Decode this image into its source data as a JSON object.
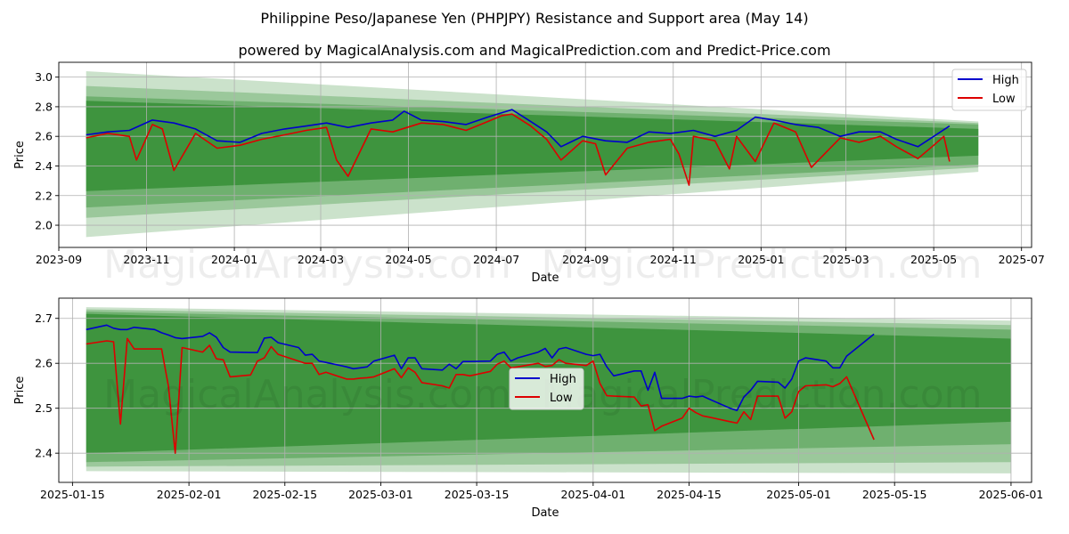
{
  "title": "Philippine Peso/Japanese Yen (PHPJPY) Resistance and Support area (May 14)",
  "subtitle": "powered by MagicalAnalysis.com and MagicalPrediction.com and Predict-Price.com",
  "watermarks": [
    "MagicalAnalysis.com",
    "MagicalPrediction.com"
  ],
  "colors": {
    "high": "#0000cc",
    "low": "#dd0000",
    "band": "#2e8b2e",
    "grid": "#b0b0b0"
  },
  "chart_data": [
    {
      "type": "line",
      "xlabel": "Date",
      "ylabel": "Price",
      "xlim": [
        "2023-09-01",
        "2025-07-08"
      ],
      "ylim": [
        1.85,
        3.1
      ],
      "x_ticks": [
        "2023-09",
        "2023-11",
        "2024-01",
        "2024-03",
        "2024-05",
        "2024-07",
        "2024-09",
        "2024-11",
        "2025-01",
        "2025-03",
        "2025-05",
        "2025-07"
      ],
      "y_ticks": [
        "2.0",
        "2.2",
        "2.4",
        "2.6",
        "2.8",
        "3.0"
      ],
      "legend": {
        "placement": "top-right",
        "entries": [
          "High",
          "Low"
        ]
      },
      "grid": true,
      "bands": {
        "x": [
          "2023-09-20",
          "2025-06-01"
        ],
        "outer": {
          "start": [
            1.92,
            3.04
          ],
          "end": [
            2.36,
            2.7
          ]
        },
        "middle": {
          "start": [
            2.05,
            2.94
          ],
          "end": [
            2.39,
            2.69
          ]
        },
        "inner": {
          "start": [
            2.12,
            2.87
          ],
          "end": [
            2.41,
            2.68
          ]
        },
        "core": {
          "start": [
            2.23,
            2.84
          ],
          "end": [
            2.47,
            2.65
          ]
        }
      },
      "series": [
        {
          "name": "High",
          "x": [
            "2023-09-20",
            "2023-10-05",
            "2023-10-20",
            "2023-11-05",
            "2023-11-20",
            "2023-12-05",
            "2023-12-20",
            "2024-01-05",
            "2024-01-20",
            "2024-02-05",
            "2024-02-20",
            "2024-03-05",
            "2024-03-20",
            "2024-04-05",
            "2024-04-20",
            "2024-04-28",
            "2024-05-10",
            "2024-05-25",
            "2024-06-10",
            "2024-06-25",
            "2024-07-05",
            "2024-07-12",
            "2024-07-25",
            "2024-08-05",
            "2024-08-15",
            "2024-08-30",
            "2024-09-15",
            "2024-09-30",
            "2024-10-15",
            "2024-10-30",
            "2024-11-15",
            "2024-11-30",
            "2024-12-15",
            "2024-12-28",
            "2025-01-10",
            "2025-01-25",
            "2025-02-10",
            "2025-02-25",
            "2025-03-10",
            "2025-03-25",
            "2025-04-05",
            "2025-04-20",
            "2025-05-01",
            "2025-05-12"
          ],
          "values": [
            2.61,
            2.63,
            2.64,
            2.71,
            2.69,
            2.65,
            2.57,
            2.56,
            2.62,
            2.65,
            2.67,
            2.69,
            2.66,
            2.69,
            2.71,
            2.77,
            2.71,
            2.7,
            2.68,
            2.73,
            2.76,
            2.78,
            2.7,
            2.63,
            2.53,
            2.6,
            2.57,
            2.56,
            2.63,
            2.62,
            2.64,
            2.6,
            2.64,
            2.73,
            2.71,
            2.68,
            2.66,
            2.6,
            2.63,
            2.63,
            2.58,
            2.53,
            2.6,
            2.67
          ]
        },
        {
          "name": "Low",
          "x": [
            "2023-09-20",
            "2023-10-05",
            "2023-10-20",
            "2023-10-25",
            "2023-11-05",
            "2023-11-12",
            "2023-11-20",
            "2023-12-05",
            "2023-12-20",
            "2024-01-05",
            "2024-01-20",
            "2024-02-05",
            "2024-02-20",
            "2024-03-05",
            "2024-03-12",
            "2024-03-20",
            "2024-04-05",
            "2024-04-20",
            "2024-05-10",
            "2024-05-25",
            "2024-06-10",
            "2024-06-25",
            "2024-07-05",
            "2024-07-12",
            "2024-07-25",
            "2024-08-05",
            "2024-08-15",
            "2024-08-30",
            "2024-09-08",
            "2024-09-15",
            "2024-09-30",
            "2024-10-15",
            "2024-10-30",
            "2024-11-05",
            "2024-11-12",
            "2024-11-15",
            "2024-11-30",
            "2024-12-10",
            "2024-12-15",
            "2024-12-28",
            "2025-01-10",
            "2025-01-25",
            "2025-02-05",
            "2025-02-25",
            "2025-03-10",
            "2025-03-25",
            "2025-04-05",
            "2025-04-20",
            "2025-05-01",
            "2025-05-08",
            "2025-05-12"
          ],
          "values": [
            2.59,
            2.62,
            2.6,
            2.44,
            2.68,
            2.65,
            2.37,
            2.62,
            2.52,
            2.54,
            2.58,
            2.61,
            2.64,
            2.66,
            2.44,
            2.33,
            2.65,
            2.63,
            2.69,
            2.68,
            2.64,
            2.7,
            2.74,
            2.75,
            2.67,
            2.58,
            2.44,
            2.57,
            2.55,
            2.34,
            2.52,
            2.56,
            2.58,
            2.48,
            2.27,
            2.6,
            2.57,
            2.38,
            2.6,
            2.43,
            2.69,
            2.63,
            2.39,
            2.59,
            2.56,
            2.6,
            2.53,
            2.45,
            2.54,
            2.6,
            2.43
          ]
        }
      ]
    },
    {
      "type": "line",
      "xlabel": "Date",
      "ylabel": "Price",
      "xlim": [
        "2025-01-13",
        "2025-06-04"
      ],
      "ylim": [
        2.335,
        2.745
      ],
      "x_ticks": [
        "2025-01-15",
        "2025-02-01",
        "2025-02-15",
        "2025-03-01",
        "2025-03-15",
        "2025-04-01",
        "2025-04-15",
        "2025-05-01",
        "2025-05-15",
        "2025-06-01"
      ],
      "y_ticks": [
        "2.4",
        "2.5",
        "2.6",
        "2.7"
      ],
      "legend": {
        "placement": "center",
        "entries": [
          "High",
          "Low"
        ]
      },
      "grid": true,
      "bands": {
        "x": [
          "2025-01-17",
          "2025-06-01"
        ],
        "outer": {
          "start": [
            2.36,
            2.725
          ],
          "end": [
            2.355,
            2.695
          ]
        },
        "middle": {
          "start": [
            2.37,
            2.72
          ],
          "end": [
            2.38,
            2.685
          ]
        },
        "inner": {
          "start": [
            2.38,
            2.715
          ],
          "end": [
            2.42,
            2.675
          ]
        },
        "core": {
          "start": [
            2.4,
            2.71
          ],
          "end": [
            2.47,
            2.655
          ]
        }
      },
      "series": [
        {
          "name": "High",
          "x": [
            "2025-01-17",
            "2025-01-20",
            "2025-01-21",
            "2025-01-22",
            "2025-01-23",
            "2025-01-24",
            "2025-01-27",
            "2025-01-28",
            "2025-01-29",
            "2025-01-30",
            "2025-01-31",
            "2025-02-03",
            "2025-02-04",
            "2025-02-05",
            "2025-02-06",
            "2025-02-07",
            "2025-02-10",
            "2025-02-11",
            "2025-02-12",
            "2025-02-13",
            "2025-02-14",
            "2025-02-17",
            "2025-02-18",
            "2025-02-19",
            "2025-02-20",
            "2025-02-21",
            "2025-02-24",
            "2025-02-25",
            "2025-02-26",
            "2025-02-27",
            "2025-02-28",
            "2025-03-03",
            "2025-03-04",
            "2025-03-05",
            "2025-03-06",
            "2025-03-07",
            "2025-03-10",
            "2025-03-11",
            "2025-03-12",
            "2025-03-13",
            "2025-03-14",
            "2025-03-17",
            "2025-03-18",
            "2025-03-19",
            "2025-03-20",
            "2025-03-21",
            "2025-03-24",
            "2025-03-25",
            "2025-03-26",
            "2025-03-27",
            "2025-03-28",
            "2025-03-31",
            "2025-04-01",
            "2025-04-02",
            "2025-04-03",
            "2025-04-04",
            "2025-04-07",
            "2025-04-08",
            "2025-04-09",
            "2025-04-10",
            "2025-04-11",
            "2025-04-14",
            "2025-04-15",
            "2025-04-16",
            "2025-04-17",
            "2025-04-18",
            "2025-04-21",
            "2025-04-22",
            "2025-04-23",
            "2025-04-24",
            "2025-04-25",
            "2025-04-28",
            "2025-04-29",
            "2025-04-30",
            "2025-05-01",
            "2025-05-02",
            "2025-05-05",
            "2025-05-06",
            "2025-05-07",
            "2025-05-08",
            "2025-05-12"
          ],
          "values": [
            2.675,
            2.685,
            2.678,
            2.675,
            2.675,
            2.68,
            2.675,
            2.668,
            2.663,
            2.657,
            2.655,
            2.66,
            2.668,
            2.658,
            2.635,
            2.625,
            2.624,
            2.624,
            2.656,
            2.658,
            2.646,
            2.635,
            2.618,
            2.62,
            2.605,
            2.602,
            2.592,
            2.588,
            2.59,
            2.592,
            2.605,
            2.618,
            2.588,
            2.612,
            2.612,
            2.588,
            2.585,
            2.598,
            2.588,
            2.604,
            2.604,
            2.605,
            2.62,
            2.625,
            2.605,
            2.612,
            2.625,
            2.633,
            2.612,
            2.632,
            2.635,
            2.62,
            2.617,
            2.62,
            2.592,
            2.572,
            2.583,
            2.583,
            2.54,
            2.58,
            2.522,
            2.522,
            2.527,
            2.525,
            2.527,
            2.52,
            2.5,
            2.495,
            2.525,
            2.54,
            2.56,
            2.558,
            2.545,
            2.565,
            2.605,
            2.612,
            2.605,
            2.59,
            2.59,
            2.616,
            2.665
          ]
        },
        {
          "name": "Low",
          "x": [
            "2025-01-17",
            "2025-01-20",
            "2025-01-21",
            "2025-01-22",
            "2025-01-23",
            "2025-01-24",
            "2025-01-27",
            "2025-01-28",
            "2025-01-29",
            "2025-01-30",
            "2025-01-31",
            "2025-02-03",
            "2025-02-04",
            "2025-02-05",
            "2025-02-06",
            "2025-02-07",
            "2025-02-10",
            "2025-02-11",
            "2025-02-12",
            "2025-02-13",
            "2025-02-14",
            "2025-02-17",
            "2025-02-18",
            "2025-02-19",
            "2025-02-20",
            "2025-02-21",
            "2025-02-24",
            "2025-02-25",
            "2025-02-26",
            "2025-02-27",
            "2025-02-28",
            "2025-03-03",
            "2025-03-04",
            "2025-03-05",
            "2025-03-06",
            "2025-03-07",
            "2025-03-10",
            "2025-03-11",
            "2025-03-12",
            "2025-03-13",
            "2025-03-14",
            "2025-03-17",
            "2025-03-18",
            "2025-03-19",
            "2025-03-20",
            "2025-03-21",
            "2025-03-24",
            "2025-03-25",
            "2025-03-26",
            "2025-03-27",
            "2025-03-28",
            "2025-03-31",
            "2025-04-01",
            "2025-04-02",
            "2025-04-03",
            "2025-04-04",
            "2025-04-07",
            "2025-04-08",
            "2025-04-09",
            "2025-04-10",
            "2025-04-11",
            "2025-04-14",
            "2025-04-15",
            "2025-04-16",
            "2025-04-17",
            "2025-04-18",
            "2025-04-21",
            "2025-04-22",
            "2025-04-23",
            "2025-04-24",
            "2025-04-25",
            "2025-04-28",
            "2025-04-29",
            "2025-04-30",
            "2025-05-01",
            "2025-05-02",
            "2025-05-05",
            "2025-05-06",
            "2025-05-07",
            "2025-05-08",
            "2025-05-12"
          ],
          "values": [
            2.643,
            2.65,
            2.648,
            2.465,
            2.655,
            2.632,
            2.632,
            2.632,
            2.55,
            2.4,
            2.635,
            2.625,
            2.64,
            2.61,
            2.608,
            2.57,
            2.574,
            2.605,
            2.612,
            2.637,
            2.62,
            2.605,
            2.6,
            2.6,
            2.575,
            2.58,
            2.565,
            2.565,
            2.567,
            2.568,
            2.57,
            2.588,
            2.568,
            2.59,
            2.58,
            2.557,
            2.55,
            2.545,
            2.575,
            2.575,
            2.572,
            2.582,
            2.598,
            2.605,
            2.59,
            2.592,
            2.6,
            2.593,
            2.595,
            2.608,
            2.6,
            2.595,
            2.605,
            2.555,
            2.528,
            2.527,
            2.525,
            2.505,
            2.508,
            2.45,
            2.46,
            2.478,
            2.5,
            2.49,
            2.483,
            2.48,
            2.47,
            2.467,
            2.492,
            2.475,
            2.527,
            2.527,
            2.478,
            2.492,
            2.537,
            2.55,
            2.552,
            2.548,
            2.555,
            2.57,
            2.43
          ]
        }
      ]
    }
  ]
}
